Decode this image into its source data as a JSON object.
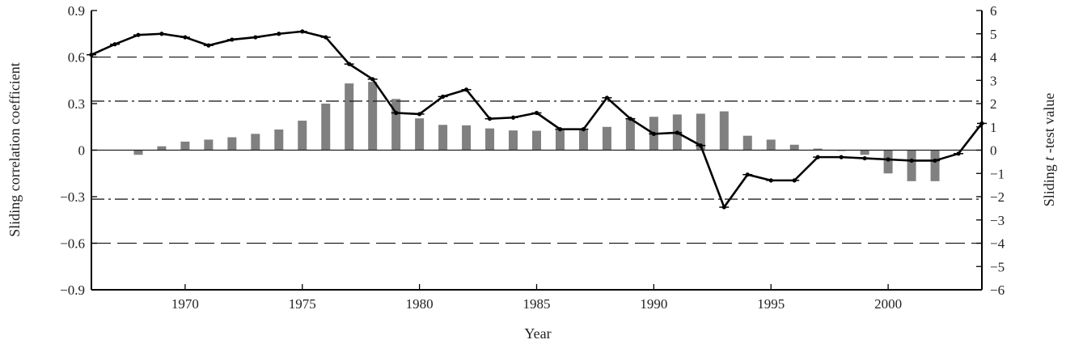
{
  "chart_data": {
    "type": "bar",
    "title": "",
    "xlabel": "Year",
    "ylabel_left": "Sliding correlation coefficient",
    "ylabel_right_parts": [
      "Sliding ",
      "t",
      " -test value"
    ],
    "xlim": [
      1966,
      2004
    ],
    "ylim_left": [
      -0.9,
      0.9
    ],
    "ylim_right": [
      -6,
      6
    ],
    "x_ticks": [
      1970,
      1975,
      1980,
      1985,
      1990,
      1995,
      2000
    ],
    "y_ticks_left": [
      {
        "value": 0.9,
        "label": "0.9"
      },
      {
        "value": 0.6,
        "label": "0.6"
      },
      {
        "value": 0.3,
        "label": "0.3"
      },
      {
        "value": 0,
        "label": "0"
      },
      {
        "value": -0.3,
        "label": "−0.3"
      },
      {
        "value": -0.6,
        "label": "−0.6"
      },
      {
        "value": -0.9,
        "label": "−0.9"
      }
    ],
    "y_ticks_right": [
      {
        "value": 6,
        "label": "6"
      },
      {
        "value": 5,
        "label": "5"
      },
      {
        "value": 4,
        "label": "4"
      },
      {
        "value": 3,
        "label": "3"
      },
      {
        "value": 2,
        "label": "2"
      },
      {
        "value": 1,
        "label": "1"
      },
      {
        "value": 0,
        "label": "0"
      },
      {
        "value": -1,
        "label": "−1"
      },
      {
        "value": -2,
        "label": "−2"
      },
      {
        "value": -3,
        "label": "−3"
      },
      {
        "value": -4,
        "label": "−4"
      },
      {
        "value": -5,
        "label": "−5"
      },
      {
        "value": -6,
        "label": "−6"
      }
    ],
    "reference_lines": [
      {
        "value": 0.6,
        "style": "dashed"
      },
      {
        "value": -0.6,
        "style": "dashed"
      },
      {
        "value": 0.316,
        "style": "dashdot"
      },
      {
        "value": -0.316,
        "style": "dashdot"
      },
      {
        "value": 0,
        "style": "solid"
      }
    ],
    "bars": {
      "axis": "left",
      "color": "#808080",
      "x": [
        1968,
        1969,
        1970,
        1971,
        1972,
        1973,
        1974,
        1975,
        1976,
        1977,
        1978,
        1979,
        1980,
        1981,
        1982,
        1983,
        1984,
        1985,
        1986,
        1987,
        1988,
        1989,
        1990,
        1991,
        1992,
        1993,
        1994,
        1995,
        1996,
        1997,
        1998,
        1999,
        2000,
        2001,
        2002
      ],
      "values": [
        -0.03,
        0.025,
        0.055,
        0.068,
        0.083,
        0.105,
        0.133,
        0.19,
        0.3,
        0.43,
        0.44,
        0.33,
        0.205,
        0.163,
        0.16,
        0.14,
        0.127,
        0.125,
        0.13,
        0.13,
        0.15,
        0.2,
        0.215,
        0.23,
        0.235,
        0.25,
        0.093,
        0.068,
        0.035,
        0.01,
        -0.005,
        -0.03,
        -0.15,
        -0.2,
        -0.2
      ]
    },
    "line": {
      "axis": "right",
      "color": "#000000",
      "x": [
        1966,
        1967,
        1968,
        1969,
        1970,
        1971,
        1972,
        1973,
        1974,
        1975,
        1976,
        1977,
        1978,
        1979,
        1980,
        1981,
        1982,
        1983,
        1984,
        1985,
        1986,
        1987,
        1988,
        1989,
        1990,
        1991,
        1992,
        1993,
        1994,
        1995,
        1996,
        1997,
        1998,
        1999,
        2000,
        2001,
        2002,
        2003,
        2004
      ],
      "values": [
        4.1,
        4.55,
        4.95,
        5.0,
        4.85,
        4.5,
        4.75,
        4.85,
        5.0,
        5.1,
        4.85,
        3.7,
        3.05,
        1.6,
        1.55,
        2.3,
        2.6,
        1.35,
        1.4,
        1.6,
        0.9,
        0.9,
        2.25,
        1.35,
        0.7,
        0.75,
        0.2,
        -2.45,
        -1.05,
        -1.3,
        -1.3,
        -0.3,
        -0.3,
        -0.35,
        -0.4,
        -0.45,
        -0.45,
        -0.15,
        1.15
      ]
    }
  }
}
